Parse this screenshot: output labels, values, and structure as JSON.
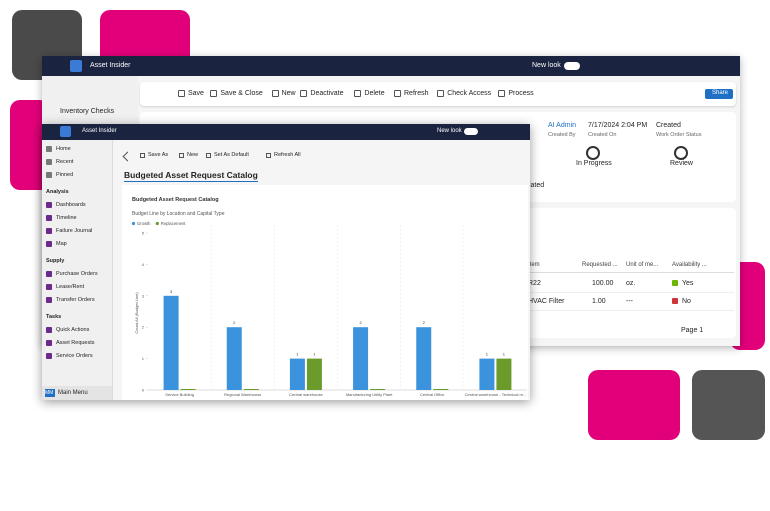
{
  "back_window": {
    "app_name": "Asset Insider",
    "new_look": "New look",
    "toolbar": [
      "Save",
      "Save & Close",
      "New",
      "Deactivate",
      "Delete",
      "Refresh",
      "Check Access",
      "Process"
    ],
    "share": "Share",
    "nav_item": "Inventory Checks",
    "header": {
      "owner": "AI Admin",
      "owner_label": "Created By",
      "date": "7/17/2024 2:04 PM",
      "date_label": "Created On",
      "status": "Created",
      "status_label": "Work Order Status"
    },
    "stages": [
      "In Progress",
      "Review"
    ],
    "related": "Related",
    "grid": {
      "columns": [
        "Item",
        "Requested ...",
        "Unit of me...",
        "Availability ..."
      ],
      "rows": [
        [
          "R22",
          "100.00",
          "oz.",
          "Yes"
        ],
        [
          "HVAC Filter",
          "1.00",
          "---",
          "No"
        ]
      ],
      "page": "Page 1"
    }
  },
  "front_window": {
    "app_name": "Asset Insider",
    "new_look": "New look",
    "nav": [
      {
        "items": [
          "Home",
          "Recent",
          "Pinned"
        ]
      },
      {
        "section": "Analysis",
        "items": [
          "Dashboards",
          "Timeline",
          "Failure Journal",
          "Map"
        ]
      },
      {
        "section": "Supply",
        "items": [
          "Purchase Orders",
          "Lease/Rent",
          "Transfer Orders"
        ]
      },
      {
        "section": "Tasks",
        "items": [
          "Quick Actions",
          "Asset Requests",
          "Service Orders"
        ]
      }
    ],
    "area_badge": "MM",
    "area": "Main Menu",
    "toolbar": [
      "Save As",
      "New",
      "Set As Default",
      "Refresh All"
    ],
    "view_name": "Budgeted Asset Request Catalog"
  },
  "chart_data": {
    "type": "bar",
    "title": "Budgeted Asset Request Catalog",
    "subtitle": "Budget Line by Location and Capital Type",
    "y_label": "Count:All (Budget Line)",
    "categories": [
      "Service Building",
      "Regional Warehouse",
      "Central warehouse",
      "Manufacturing Utility Plant",
      "Central Office",
      "Central warehouse - Technical m..."
    ],
    "series": [
      {
        "name": "Growth",
        "color": "#3b93dd",
        "values": [
          3,
          2,
          1,
          2,
          2,
          1
        ]
      },
      {
        "name": "Replacement",
        "color": "#6b9b2b",
        "values": [
          0,
          0,
          1,
          0,
          0,
          1
        ]
      }
    ],
    "ylim": [
      0,
      5
    ],
    "yticks": [
      0,
      1,
      2,
      3,
      4,
      5
    ]
  }
}
